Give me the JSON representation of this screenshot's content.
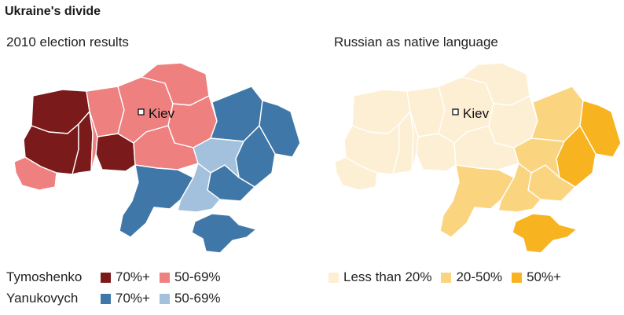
{
  "title": "Ukraine's divide",
  "left_panel": {
    "subtitle": "2010 election results",
    "city": "Kiev",
    "legend": [
      {
        "candidate": "Tymoshenko",
        "items": [
          {
            "label": "70%+",
            "color": "#7b1a1a"
          },
          {
            "label": "50-69%",
            "color": "#ee8080"
          }
        ]
      },
      {
        "candidate": "Yanukovych",
        "items": [
          {
            "label": "70%+",
            "color": "#3f78a8"
          },
          {
            "label": "50-69%",
            "color": "#a3c0dc"
          }
        ]
      }
    ]
  },
  "right_panel": {
    "subtitle": "Russian as native language",
    "city": "Kiev",
    "legend": [
      {
        "label": "Less than 20%",
        "color": "#fdefd3"
      },
      {
        "label": "20-50%",
        "color": "#fbd480"
      },
      {
        "label": "50%+",
        "color": "#f8b320"
      }
    ]
  },
  "colors": {
    "tymoshenko_strong": "#7b1a1a",
    "tymoshenko_lean": "#ee8080",
    "yanukovych_strong": "#3f78a8",
    "yanukovych_lean": "#a3c0dc",
    "russian_low": "#fdefd3",
    "russian_mid": "#fbd480",
    "russian_high": "#f8b320"
  }
}
